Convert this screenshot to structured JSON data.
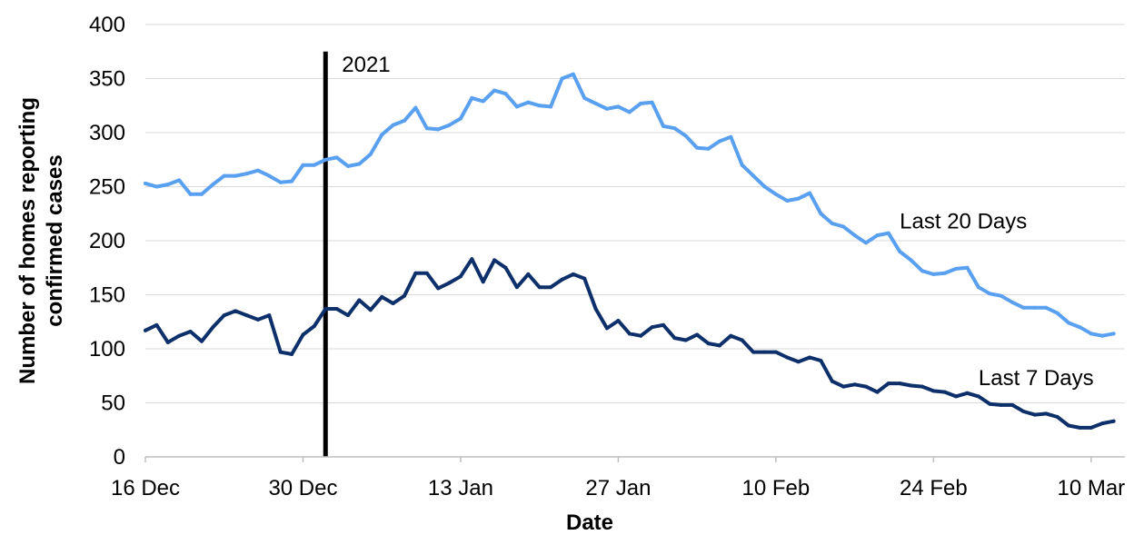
{
  "chart_data": {
    "type": "line",
    "title": "",
    "xlabel": "Date",
    "ylabel": "Number of homes reporting confirmed cases",
    "ylabel_lines": [
      "Number of homes reporting",
      "confirmed cases"
    ],
    "ylim": [
      0,
      400
    ],
    "yticks": [
      0,
      50,
      100,
      150,
      200,
      250,
      300,
      350,
      400
    ],
    "ytick_labels": [
      "0",
      "50",
      "100",
      "150",
      "200",
      "250",
      "300",
      "350",
      "400"
    ],
    "xlim": [
      "2020-12-16",
      "2021-03-13"
    ],
    "xticks": [
      "2020-12-16",
      "2020-12-30",
      "2021-01-13",
      "2021-01-27",
      "2021-02-10",
      "2021-02-24",
      "2021-03-10"
    ],
    "xtick_labels": [
      "16 Dec",
      "30 Dec",
      "13 Jan",
      "27 Jan",
      "10 Feb",
      "24 Feb",
      "10 Mar"
    ],
    "grid": "horizontal",
    "legend": "inline labels",
    "marker": {
      "date": "2021-01-01",
      "label": "2021",
      "color": "#000000"
    },
    "series": [
      {
        "name": "Last 20 Days",
        "color": "#5aa0f0",
        "label_anchor": {
          "date": "2021-02-21",
          "value": 218
        },
        "values": [
          [
            "2020-12-16",
            253
          ],
          [
            "2020-12-17",
            250
          ],
          [
            "2020-12-18",
            252
          ],
          [
            "2020-12-19",
            256
          ],
          [
            "2020-12-20",
            243
          ],
          [
            "2020-12-21",
            243
          ],
          [
            "2020-12-22",
            252
          ],
          [
            "2020-12-23",
            260
          ],
          [
            "2020-12-24",
            260
          ],
          [
            "2020-12-25",
            262
          ],
          [
            "2020-12-26",
            265
          ],
          [
            "2020-12-27",
            260
          ],
          [
            "2020-12-28",
            254
          ],
          [
            "2020-12-29",
            255
          ],
          [
            "2020-12-30",
            270
          ],
          [
            "2020-12-31",
            270
          ],
          [
            "2021-01-01",
            275
          ],
          [
            "2021-01-02",
            277
          ],
          [
            "2021-01-03",
            269
          ],
          [
            "2021-01-04",
            271
          ],
          [
            "2021-01-05",
            280
          ],
          [
            "2021-01-06",
            298
          ],
          [
            "2021-01-07",
            307
          ],
          [
            "2021-01-08",
            311
          ],
          [
            "2021-01-09",
            323
          ],
          [
            "2021-01-10",
            304
          ],
          [
            "2021-01-11",
            303
          ],
          [
            "2021-01-12",
            307
          ],
          [
            "2021-01-13",
            313
          ],
          [
            "2021-01-14",
            332
          ],
          [
            "2021-01-15",
            329
          ],
          [
            "2021-01-16",
            339
          ],
          [
            "2021-01-17",
            336
          ],
          [
            "2021-01-18",
            324
          ],
          [
            "2021-01-19",
            328
          ],
          [
            "2021-01-20",
            325
          ],
          [
            "2021-01-21",
            324
          ],
          [
            "2021-01-22",
            350
          ],
          [
            "2021-01-23",
            354
          ],
          [
            "2021-01-24",
            332
          ],
          [
            "2021-01-25",
            327
          ],
          [
            "2021-01-26",
            322
          ],
          [
            "2021-01-27",
            324
          ],
          [
            "2021-01-28",
            319
          ],
          [
            "2021-01-29",
            327
          ],
          [
            "2021-01-30",
            328
          ],
          [
            "2021-01-31",
            306
          ],
          [
            "2021-02-01",
            304
          ],
          [
            "2021-02-02",
            297
          ],
          [
            "2021-02-03",
            286
          ],
          [
            "2021-02-04",
            285
          ],
          [
            "2021-02-05",
            292
          ],
          [
            "2021-02-06",
            296
          ],
          [
            "2021-02-07",
            270
          ],
          [
            "2021-02-08",
            260
          ],
          [
            "2021-02-09",
            250
          ],
          [
            "2021-02-10",
            243
          ],
          [
            "2021-02-11",
            237
          ],
          [
            "2021-02-12",
            239
          ],
          [
            "2021-02-13",
            244
          ],
          [
            "2021-02-14",
            225
          ],
          [
            "2021-02-15",
            216
          ],
          [
            "2021-02-16",
            213
          ],
          [
            "2021-02-17",
            205
          ],
          [
            "2021-02-18",
            198
          ],
          [
            "2021-02-19",
            205
          ],
          [
            "2021-02-20",
            207
          ],
          [
            "2021-02-21",
            190
          ],
          [
            "2021-02-22",
            182
          ],
          [
            "2021-02-23",
            172
          ],
          [
            "2021-02-24",
            169
          ],
          [
            "2021-02-25",
            170
          ],
          [
            "2021-02-26",
            174
          ],
          [
            "2021-02-27",
            175
          ],
          [
            "2021-02-28",
            157
          ],
          [
            "2021-03-01",
            151
          ],
          [
            "2021-03-02",
            149
          ],
          [
            "2021-03-03",
            143
          ],
          [
            "2021-03-04",
            138
          ],
          [
            "2021-03-05",
            138
          ],
          [
            "2021-03-06",
            138
          ],
          [
            "2021-03-07",
            133
          ],
          [
            "2021-03-08",
            124
          ],
          [
            "2021-03-09",
            120
          ],
          [
            "2021-03-10",
            114
          ],
          [
            "2021-03-11",
            112
          ],
          [
            "2021-03-12",
            114
          ]
        ]
      },
      {
        "name": "Last 7 Days",
        "color": "#0d2f6a",
        "label_anchor": {
          "date": "2021-02-28",
          "value": 73
        },
        "values": [
          [
            "2020-12-16",
            117
          ],
          [
            "2020-12-17",
            122
          ],
          [
            "2020-12-18",
            106
          ],
          [
            "2020-12-19",
            112
          ],
          [
            "2020-12-20",
            116
          ],
          [
            "2020-12-21",
            107
          ],
          [
            "2020-12-22",
            120
          ],
          [
            "2020-12-23",
            131
          ],
          [
            "2020-12-24",
            135
          ],
          [
            "2020-12-25",
            131
          ],
          [
            "2020-12-26",
            127
          ],
          [
            "2020-12-27",
            131
          ],
          [
            "2020-12-28",
            97
          ],
          [
            "2020-12-29",
            95
          ],
          [
            "2020-12-30",
            113
          ],
          [
            "2020-12-31",
            121
          ],
          [
            "2021-01-01",
            137
          ],
          [
            "2021-01-02",
            137
          ],
          [
            "2021-01-03",
            131
          ],
          [
            "2021-01-04",
            145
          ],
          [
            "2021-01-05",
            136
          ],
          [
            "2021-01-06",
            148
          ],
          [
            "2021-01-07",
            142
          ],
          [
            "2021-01-08",
            149
          ],
          [
            "2021-01-09",
            170
          ],
          [
            "2021-01-10",
            170
          ],
          [
            "2021-01-11",
            156
          ],
          [
            "2021-01-12",
            161
          ],
          [
            "2021-01-13",
            167
          ],
          [
            "2021-01-14",
            183
          ],
          [
            "2021-01-15",
            162
          ],
          [
            "2021-01-16",
            182
          ],
          [
            "2021-01-17",
            175
          ],
          [
            "2021-01-18",
            157
          ],
          [
            "2021-01-19",
            169
          ],
          [
            "2021-01-20",
            157
          ],
          [
            "2021-01-21",
            157
          ],
          [
            "2021-01-22",
            164
          ],
          [
            "2021-01-23",
            169
          ],
          [
            "2021-01-24",
            165
          ],
          [
            "2021-01-25",
            137
          ],
          [
            "2021-01-26",
            119
          ],
          [
            "2021-01-27",
            126
          ],
          [
            "2021-01-28",
            114
          ],
          [
            "2021-01-29",
            112
          ],
          [
            "2021-01-30",
            120
          ],
          [
            "2021-01-31",
            122
          ],
          [
            "2021-02-01",
            110
          ],
          [
            "2021-02-02",
            108
          ],
          [
            "2021-02-03",
            113
          ],
          [
            "2021-02-04",
            105
          ],
          [
            "2021-02-05",
            103
          ],
          [
            "2021-02-06",
            112
          ],
          [
            "2021-02-07",
            108
          ],
          [
            "2021-02-08",
            97
          ],
          [
            "2021-02-09",
            97
          ],
          [
            "2021-02-10",
            97
          ],
          [
            "2021-02-11",
            92
          ],
          [
            "2021-02-12",
            88
          ],
          [
            "2021-02-13",
            92
          ],
          [
            "2021-02-14",
            89
          ],
          [
            "2021-02-15",
            70
          ],
          [
            "2021-02-16",
            65
          ],
          [
            "2021-02-17",
            67
          ],
          [
            "2021-02-18",
            65
          ],
          [
            "2021-02-19",
            60
          ],
          [
            "2021-02-20",
            68
          ],
          [
            "2021-02-21",
            68
          ],
          [
            "2021-02-22",
            66
          ],
          [
            "2021-02-23",
            65
          ],
          [
            "2021-02-24",
            61
          ],
          [
            "2021-02-25",
            60
          ],
          [
            "2021-02-26",
            56
          ],
          [
            "2021-02-27",
            59
          ],
          [
            "2021-02-28",
            56
          ],
          [
            "2021-03-01",
            49
          ],
          [
            "2021-03-02",
            48
          ],
          [
            "2021-03-03",
            48
          ],
          [
            "2021-03-04",
            42
          ],
          [
            "2021-03-05",
            39
          ],
          [
            "2021-03-06",
            40
          ],
          [
            "2021-03-07",
            37
          ],
          [
            "2021-03-08",
            29
          ],
          [
            "2021-03-09",
            27
          ],
          [
            "2021-03-10",
            27
          ],
          [
            "2021-03-11",
            31
          ],
          [
            "2021-03-12",
            33
          ]
        ]
      }
    ]
  }
}
